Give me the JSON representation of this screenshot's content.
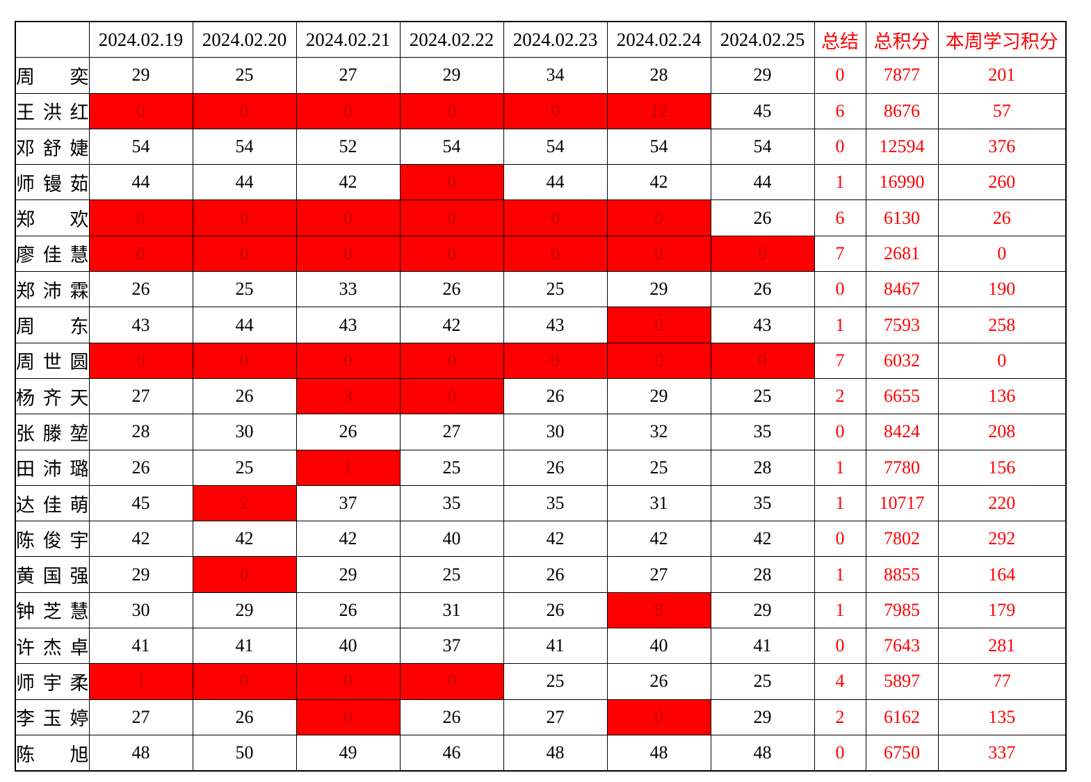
{
  "table": {
    "corner_label": "",
    "date_columns": [
      "2024.02.19",
      "2024.02.20",
      "2024.02.21",
      "2024.02.22",
      "2024.02.23",
      "2024.02.24",
      "2024.02.25"
    ],
    "summary_columns": {
      "summary": "总结",
      "total_points": "总积分",
      "week_points": "本周学习积分"
    },
    "colors": {
      "highlight_bg": "#FF0000",
      "highlight_value_text": "#C00000",
      "accent_text": "#FF0000",
      "grid_line": "#000000"
    },
    "rows": [
      {
        "name": "周奕",
        "values": [
          29,
          25,
          27,
          29,
          34,
          28,
          29
        ],
        "highlighted": [],
        "summary": 0,
        "total_points": 7877,
        "week_points": 201
      },
      {
        "name": "王洪红",
        "values": [
          0,
          0,
          0,
          0,
          0,
          12,
          45
        ],
        "highlighted": [
          0,
          1,
          2,
          3,
          4,
          5
        ],
        "summary": 6,
        "total_points": 8676,
        "week_points": 57
      },
      {
        "name": "邓舒婕",
        "values": [
          54,
          54,
          52,
          54,
          54,
          54,
          54
        ],
        "highlighted": [],
        "summary": 0,
        "total_points": 12594,
        "week_points": 376
      },
      {
        "name": "师镘茹",
        "values": [
          44,
          44,
          42,
          0,
          44,
          42,
          44
        ],
        "highlighted": [
          3
        ],
        "summary": 1,
        "total_points": 16990,
        "week_points": 260
      },
      {
        "name": "郑欢",
        "values": [
          0,
          0,
          0,
          0,
          0,
          0,
          26
        ],
        "highlighted": [
          0,
          1,
          2,
          3,
          4,
          5
        ],
        "summary": 6,
        "total_points": 6130,
        "week_points": 26
      },
      {
        "name": "廖佳慧",
        "values": [
          0,
          0,
          0,
          0,
          0,
          0,
          0
        ],
        "highlighted": [
          0,
          1,
          2,
          3,
          4,
          5,
          6
        ],
        "summary": 7,
        "total_points": 2681,
        "week_points": 0
      },
      {
        "name": "郑沛霖",
        "values": [
          26,
          25,
          33,
          26,
          25,
          29,
          26
        ],
        "highlighted": [],
        "summary": 0,
        "total_points": 8467,
        "week_points": 190
      },
      {
        "name": "周东",
        "values": [
          43,
          44,
          43,
          42,
          43,
          0,
          43
        ],
        "highlighted": [
          5
        ],
        "summary": 1,
        "total_points": 7593,
        "week_points": 258
      },
      {
        "name": "周世圆",
        "values": [
          0,
          0,
          0,
          0,
          0,
          0,
          0
        ],
        "highlighted": [
          0,
          1,
          2,
          3,
          4,
          5,
          6
        ],
        "summary": 7,
        "total_points": 6032,
        "week_points": 0
      },
      {
        "name": "杨齐天",
        "values": [
          27,
          26,
          3,
          0,
          26,
          29,
          25
        ],
        "highlighted": [
          2,
          3
        ],
        "summary": 2,
        "total_points": 6655,
        "week_points": 136
      },
      {
        "name": "张滕堃",
        "values": [
          28,
          30,
          26,
          27,
          30,
          32,
          35
        ],
        "highlighted": [],
        "summary": 0,
        "total_points": 8424,
        "week_points": 208
      },
      {
        "name": "田沛璐",
        "values": [
          26,
          25,
          1,
          25,
          26,
          25,
          28
        ],
        "highlighted": [
          2
        ],
        "summary": 1,
        "total_points": 7780,
        "week_points": 156
      },
      {
        "name": "达佳萌",
        "values": [
          45,
          2,
          37,
          35,
          35,
          31,
          35
        ],
        "highlighted": [
          1
        ],
        "summary": 1,
        "total_points": 10717,
        "week_points": 220
      },
      {
        "name": "陈俊宇",
        "values": [
          42,
          42,
          42,
          40,
          42,
          42,
          42
        ],
        "highlighted": [],
        "summary": 0,
        "total_points": 7802,
        "week_points": 292
      },
      {
        "name": "黄国强",
        "values": [
          29,
          0,
          29,
          25,
          26,
          27,
          28
        ],
        "highlighted": [
          1
        ],
        "summary": 1,
        "total_points": 8855,
        "week_points": 164
      },
      {
        "name": "钟芝慧",
        "values": [
          30,
          29,
          26,
          31,
          26,
          8,
          29
        ],
        "highlighted": [
          5
        ],
        "summary": 1,
        "total_points": 7985,
        "week_points": 179
      },
      {
        "name": "许杰卓",
        "values": [
          41,
          41,
          40,
          37,
          41,
          40,
          41
        ],
        "highlighted": [],
        "summary": 0,
        "total_points": 7643,
        "week_points": 281
      },
      {
        "name": "师宇柔",
        "values": [
          1,
          0,
          0,
          0,
          25,
          26,
          25
        ],
        "highlighted": [
          0,
          1,
          2,
          3
        ],
        "summary": 4,
        "total_points": 5897,
        "week_points": 77
      },
      {
        "name": "李玉婷",
        "values": [
          27,
          26,
          0,
          26,
          27,
          0,
          29
        ],
        "highlighted": [
          2,
          5
        ],
        "summary": 2,
        "total_points": 6162,
        "week_points": 135
      },
      {
        "name": "陈旭",
        "values": [
          48,
          50,
          49,
          46,
          48,
          48,
          48
        ],
        "highlighted": [],
        "summary": 0,
        "total_points": 6750,
        "week_points": 337
      }
    ]
  }
}
